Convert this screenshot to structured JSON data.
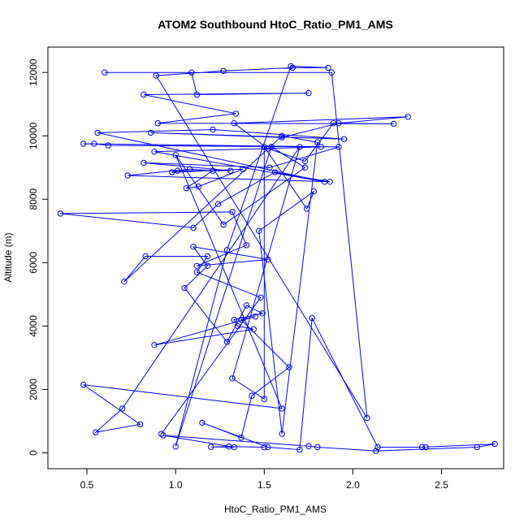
{
  "chart_data": {
    "type": "line",
    "title": "ATOM2 Southbound HtoC_Ratio_PM1_AMS",
    "xlabel": "HtoC_Ratio_PM1_AMS",
    "ylabel": "Altitude (m)",
    "xlim": [
      0.28,
      2.85
    ],
    "ylim": [
      -500,
      12800
    ],
    "xticks": [
      0.5,
      1.0,
      1.5,
      2.0,
      2.5
    ],
    "xtick_labels": [
      "0.5",
      "1.0",
      "1.5",
      "2.0",
      "2.5"
    ],
    "yticks": [
      0,
      2000,
      4000,
      6000,
      8000,
      10000,
      12000
    ],
    "ytick_labels": [
      "0",
      "2000",
      "4000",
      "6000",
      "8000",
      "10000",
      "12000"
    ],
    "grid": false,
    "markers": "open-circle",
    "series": [
      {
        "color": "#0000ff",
        "points": [
          [
            1.5,
            180
          ],
          [
            1.3,
            200
          ],
          [
            1.2,
            190
          ],
          [
            1.33,
            180
          ],
          [
            0.93,
            550
          ],
          [
            1.75,
            210
          ],
          [
            1.8,
            180
          ],
          [
            2.13,
            60
          ],
          [
            2.7,
            180
          ],
          [
            2.8,
            280
          ],
          [
            2.39,
            180
          ],
          [
            2.41,
            180
          ],
          [
            2.14,
            180
          ],
          [
            1.77,
            4250
          ],
          [
            1.7,
            100
          ],
          [
            1.52,
            180
          ],
          [
            1.15,
            950
          ],
          [
            1.37,
            480
          ],
          [
            1.43,
            1800
          ],
          [
            1.64,
            2700
          ],
          [
            1.37,
            4200
          ],
          [
            1.45,
            4300
          ],
          [
            0.88,
            3400
          ],
          [
            1.44,
            3900
          ],
          [
            1.35,
            4000
          ],
          [
            1.33,
            4200
          ],
          [
            1.49,
            4400
          ],
          [
            1.4,
            4650
          ],
          [
            1.29,
            3500
          ],
          [
            1.05,
            5200
          ],
          [
            1.18,
            5900
          ],
          [
            1.1,
            6500
          ],
          [
            1.52,
            6100
          ],
          [
            1.12,
            5900
          ],
          [
            1.4,
            6550
          ],
          [
            1.32,
            7600
          ],
          [
            0.35,
            7550
          ],
          [
            1.1,
            7100
          ],
          [
            1.24,
            7850
          ],
          [
            1.56,
            8850
          ],
          [
            1.87,
            8550
          ],
          [
            0.73,
            8750
          ],
          [
            1.08,
            8950
          ],
          [
            1.21,
            8900
          ],
          [
            1.06,
            8350
          ],
          [
            1.13,
            8400
          ],
          [
            1.38,
            8950
          ],
          [
            0.98,
            8850
          ],
          [
            1.01,
            8900
          ],
          [
            1.31,
            8900
          ],
          [
            0.82,
            9150
          ],
          [
            1.53,
            9000
          ],
          [
            1.92,
            9650
          ],
          [
            0.48,
            9750
          ],
          [
            0.54,
            9750
          ],
          [
            0.62,
            9700
          ],
          [
            1.82,
            9650
          ],
          [
            0.88,
            9500
          ],
          [
            1.84,
            8550
          ],
          [
            0.56,
            10100
          ],
          [
            1.21,
            10200
          ],
          [
            1.95,
            9900
          ],
          [
            0.86,
            10100
          ],
          [
            1.6,
            9950
          ],
          [
            1.92,
            10400
          ],
          [
            2.31,
            10600
          ],
          [
            1.33,
            10400
          ],
          [
            1.52,
            9600
          ],
          [
            1.73,
            9200
          ],
          [
            1.89,
            10400
          ],
          [
            2.23,
            10380
          ],
          [
            0.9,
            10400
          ],
          [
            1.34,
            10700
          ],
          [
            0.82,
            11300
          ],
          [
            1.75,
            11350
          ],
          [
            1.12,
            11300
          ],
          [
            1.09,
            12000
          ],
          [
            0.6,
            12000
          ],
          [
            1.88,
            12000
          ],
          [
            2.08,
            1100
          ],
          [
            0.89,
            11900
          ],
          [
            1.27,
            12050
          ],
          [
            1.66,
            12150
          ],
          [
            1.86,
            12150
          ],
          [
            1.65,
            12200
          ],
          [
            1.29,
            6400
          ],
          [
            1.0,
            200
          ],
          [
            1.54,
            9650
          ],
          [
            1.73,
            9000
          ],
          [
            1.27,
            7200
          ],
          [
            1.0,
            9400
          ],
          [
            1.6,
            1400
          ],
          [
            0.48,
            2150
          ],
          [
            0.8,
            900
          ],
          [
            0.55,
            650
          ],
          [
            0.7,
            1400
          ],
          [
            1.7,
            9650
          ],
          [
            1.32,
            2350
          ],
          [
            1.5,
            1700
          ],
          [
            1.5,
            9650
          ],
          [
            1.74,
            7700
          ],
          [
            1.78,
            8250
          ],
          [
            1.47,
            7000
          ],
          [
            1.6,
            600
          ],
          [
            1.8,
            9800
          ],
          [
            1.6,
            10000
          ],
          [
            0.71,
            5400
          ],
          [
            0.83,
            6200
          ],
          [
            1.18,
            6200
          ],
          [
            1.12,
            5700
          ],
          [
            1.48,
            4900
          ],
          [
            0.92,
            600
          ]
        ]
      }
    ]
  }
}
